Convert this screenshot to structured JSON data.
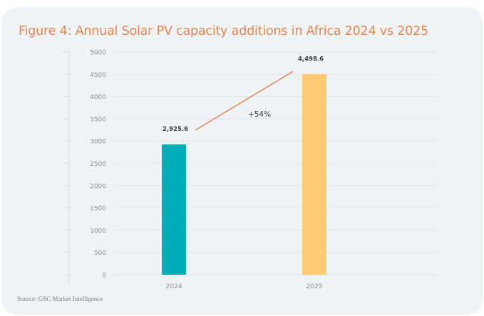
{
  "title": "Figure 4: Annual Solar PV capacity additions in Africa 2024 vs 2025",
  "source": "Source: GSC Market Intelligence",
  "chart_data": {
    "type": "bar",
    "title": "Figure 4: Annual Solar PV capacity additions in Africa 2024 vs 2025",
    "categories": [
      "2024",
      "2025"
    ],
    "values": [
      2925.6,
      4498.6
    ],
    "data_labels": [
      "2,925.6",
      "4,498.6"
    ],
    "colors": [
      "#00adb5",
      "#ffca74"
    ],
    "ylim": [
      0,
      5000
    ],
    "yticks": [
      0,
      500,
      1000,
      1500,
      2000,
      2500,
      3000,
      3500,
      4000,
      4500,
      5000
    ],
    "grid": true,
    "xlabel": "",
    "ylabel": "",
    "annotation": {
      "text": "+54%",
      "line_color": "#e8834e"
    }
  }
}
